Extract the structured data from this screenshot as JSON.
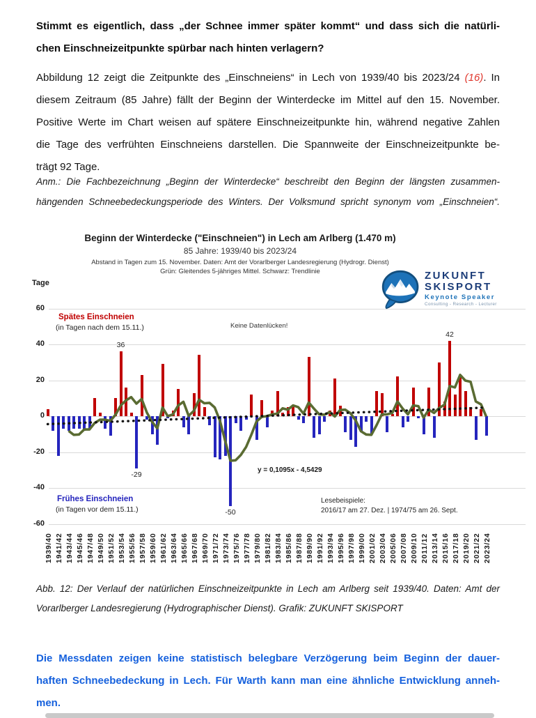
{
  "page": {
    "colors": {
      "late_red": "#c00000",
      "early_blue": "#2525bd",
      "mean_green": "#5a6b32",
      "trend_black": "#131313",
      "gridline": "#d9d9d9",
      "conclusion_blue": "#1661dd",
      "ref_red": "#e0392f",
      "logo_blue": "#1d72b8",
      "logo_navy": "#1b3c78",
      "logo_gray": "#7a93ad"
    }
  },
  "headline": {
    "lines": [
      "Stimmt es eigentlich, dass „der Schnee immer später kommt“ und dass sich die natürli-",
      "chen Einschneizeitpunkte spürbar nach hinten verlagern?"
    ]
  },
  "intro": {
    "line1_pre": "Abbildung 12 zeigt die Zeitpunkte des „Einschneiens“ in Lech von 1939/40 bis 2023/24 ",
    "ref": "(16)",
    "line1_post": ". In",
    "lines_rest": [
      "diesem Zeitraum (85 Jahre) fällt der Beginn der Winterdecke im Mittel auf den 15. November.",
      "Positive Werte im Chart weisen auf spätere Einschneizeitpunkte hin, während negative Zahlen",
      "die Tage des verfrühten Einschneiens darstellen. Die Spannweite der Einschneizeitpunkte be-",
      "trägt 92 Tage."
    ]
  },
  "note": {
    "lines": [
      "Anm.: Die Fachbezeichnung „Beginn der Winterdecke“ beschreibt den Beginn der längsten zusammen-",
      "hängenden Schneebedeckungsperiode des Winters. Der Volksmund spricht synonym vom „Einschneien“."
    ]
  },
  "chart": {
    "title": "Beginn der Winterdecke (\"Einschneien\") in Lech am Arlberg (1.470 m)",
    "subtitle1": "85 Jahre: 1939/40 bis 2023/24",
    "subtitle2": "Abstand in Tagen zum 15. November. Daten: Amt der Vorarlberger Landesregierung (Hydrogr. Dienst)",
    "subtitle3": "Grün: Gleitendes 5-jähriges Mittel. Schwarz: Trendlinie",
    "y_axis_title": "Tage",
    "legend_late_title": "Spätes Einschneien",
    "legend_late_sub": "(in Tagen nach dem 15.11.)",
    "legend_early_title": "Frühes Einschneien",
    "legend_early_sub": "(in Tagen vor dem 15.11.)",
    "no_gaps": "Keine Datenlücken!",
    "equation": "y = 0,1095x - 4,5429",
    "examples_title": "Lesebeispiele:",
    "examples_line": "2016/17 am 27. Dez.   |   1974/75 am 26. Sept."
  },
  "chart_data": {
    "type": "bar",
    "title": "Beginn der Winterdecke (\"Einschneien\") in Lech am Arlberg (1.470 m)",
    "ylabel": "Tage",
    "ylim": [
      -60,
      60
    ],
    "yticks": [
      60,
      40,
      20,
      0,
      -20,
      -40,
      -60
    ],
    "grid": true,
    "start_season": "1939/40",
    "end_season": "2023/24",
    "x_tick_labels": [
      "1939/40",
      "1941/42",
      "1943/44",
      "1945/46",
      "1947/48",
      "1949/50",
      "1951/52",
      "1953/54",
      "1955/56",
      "1957/58",
      "1959/60",
      "1961/62",
      "1963/64",
      "1965/66",
      "1967/68",
      "1969/70",
      "1971/72",
      "1973/74",
      "1975/76",
      "1977/78",
      "1979/80",
      "1981/82",
      "1983/84",
      "1985/86",
      "1987/88",
      "1989/90",
      "1991/92",
      "1993/94",
      "1995/96",
      "1997/98",
      "1999/00",
      "2001/02",
      "2003/04",
      "2005/06",
      "2007/08",
      "2009/10",
      "2011/12",
      "2013/14",
      "2015/16",
      "2017/18",
      "2019/20",
      "2021/22",
      "2023/24"
    ],
    "values": [
      4,
      -8,
      -22,
      -7,
      -8,
      -7,
      -7,
      -8,
      -7,
      10,
      2,
      -7,
      -11,
      10,
      36,
      16,
      2,
      -29,
      23,
      -2,
      -10,
      -16,
      29,
      -1,
      3,
      15,
      -6,
      -10,
      13,
      34,
      5,
      -5,
      -23,
      -24,
      -22,
      -50,
      -4,
      -8,
      -2,
      12,
      -13,
      9,
      -6,
      3,
      14,
      2,
      5,
      6,
      -2,
      -4,
      33,
      -12,
      -10,
      -3,
      3,
      21,
      6,
      -9,
      -13,
      -17,
      -9,
      -3,
      -10,
      14,
      13,
      -9,
      1,
      22,
      -6,
      -3,
      16,
      -1,
      -10,
      16,
      -12,
      30,
      8,
      42,
      12,
      23,
      14,
      5,
      -13,
      4,
      -11
    ],
    "moving_average_window": 5,
    "trend": {
      "slope": 0.1095,
      "intercept": -4.5429,
      "label": "y = 0,1095x - 4,5429"
    },
    "annotations": [
      {
        "text": "36",
        "index": 14,
        "side": "above"
      },
      {
        "text": "42",
        "index": 77,
        "side": "above"
      },
      {
        "text": "-29",
        "index": 17,
        "side": "below"
      },
      {
        "text": "-50",
        "index": 35,
        "side": "below"
      }
    ]
  },
  "logo": {
    "line1": "ZUKUNFT",
    "line2": "SKISPORT",
    "line3": "Keynote Speaker",
    "line4": "Consulting - Research - Lecturer"
  },
  "caption": {
    "lines": [
      "Abb. 12: Der Verlauf der natürlichen Einschneizeitpunkte in Lech am Arlberg seit 1939/40. Daten: Amt der",
      "Vorarlberger Landesregierung (Hydrographischer Dienst). Grafik: ZUKUNFT SKISPORT"
    ]
  },
  "conclusion": {
    "lines": [
      "Die Messdaten zeigen keine statistisch belegbare Verzögerung beim Beginn der dauer-",
      "haften Schneebedeckung in Lech. Für Warth kann man eine ähnliche Entwicklung anneh-",
      "men."
    ]
  }
}
